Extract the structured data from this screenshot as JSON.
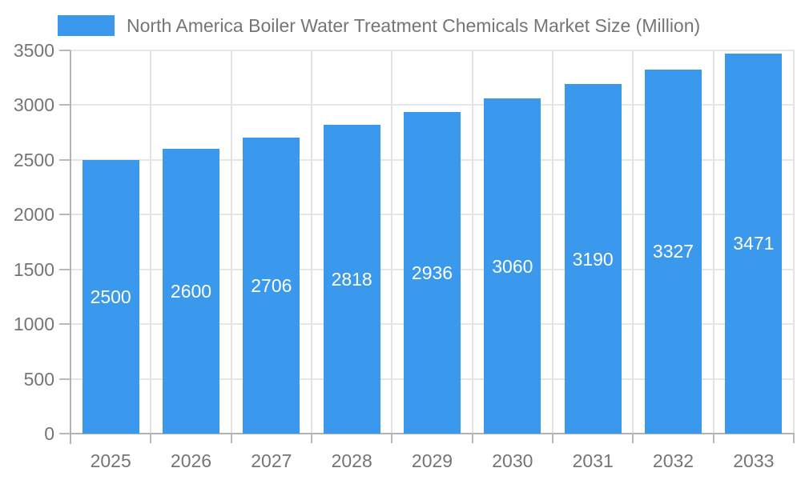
{
  "chart_data": {
    "type": "bar",
    "title": "North America Boiler Water Treatment Chemicals Market Size (Million)",
    "categories": [
      "2025",
      "2026",
      "2027",
      "2028",
      "2029",
      "2030",
      "2031",
      "2032",
      "2033"
    ],
    "values": [
      2500,
      2600,
      2706,
      2818,
      2936,
      3060,
      3190,
      3327,
      3471
    ],
    "value_labels": [
      "2500",
      "2600",
      "2706",
      "2818",
      "2936",
      "3060",
      "3190",
      "3327",
      "3471"
    ],
    "ytick_labels": [
      "0",
      "500",
      "1000",
      "1500",
      "2000",
      "2500",
      "3000",
      "3500"
    ],
    "ylim": [
      0,
      3500
    ],
    "ytick_step": 500,
    "xlabel": "",
    "ylabel": "",
    "grid": "on",
    "legend_position": "top",
    "colors": {
      "bar": "#3a99ec",
      "value_label": "#ffffff",
      "axis_text": "#757575",
      "gridline": "#e6e6e6",
      "axis_line": "#b3b3b3"
    }
  }
}
